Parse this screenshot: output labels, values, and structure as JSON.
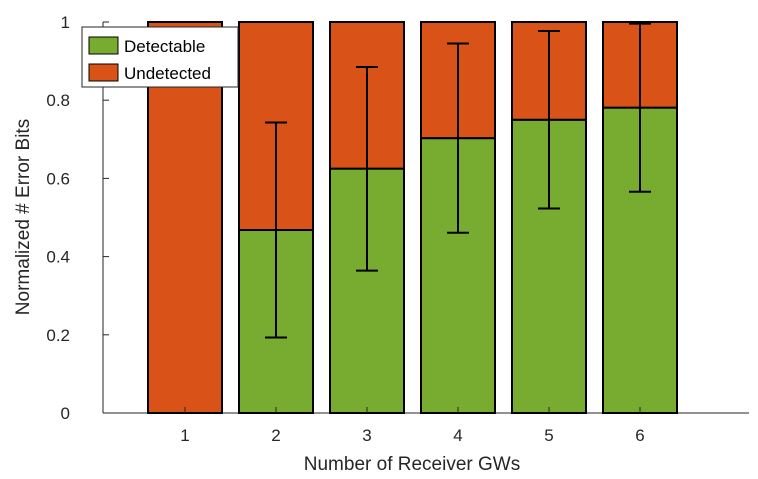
{
  "chart_data": {
    "type": "bar",
    "stacked": true,
    "title": "",
    "xlabel": "Number of Receiver GWs",
    "ylabel": "Normalized # Error Bits",
    "categories": [
      "1",
      "2",
      "3",
      "4",
      "5",
      "6"
    ],
    "ylim": [
      0,
      1
    ],
    "yticks": [
      "0",
      "0.2",
      "0.4",
      "0.6",
      "0.8",
      "1"
    ],
    "grid": false,
    "legend_position": "top-left",
    "series": [
      {
        "name": "Detectable",
        "color": "#77ac30",
        "values": [
          0.0,
          0.468,
          0.625,
          0.703,
          0.75,
          0.781
        ]
      },
      {
        "name": "Undetected",
        "color": "#d95319",
        "values": [
          1.0,
          0.532,
          0.375,
          0.297,
          0.25,
          0.219
        ]
      }
    ],
    "error_bars": {
      "series": "Detectable",
      "lower": [
        0.0,
        0.193,
        0.364,
        0.461,
        0.523,
        0.566
      ],
      "upper": [
        0.0,
        0.743,
        0.885,
        0.945,
        0.977,
        0.996
      ]
    }
  }
}
